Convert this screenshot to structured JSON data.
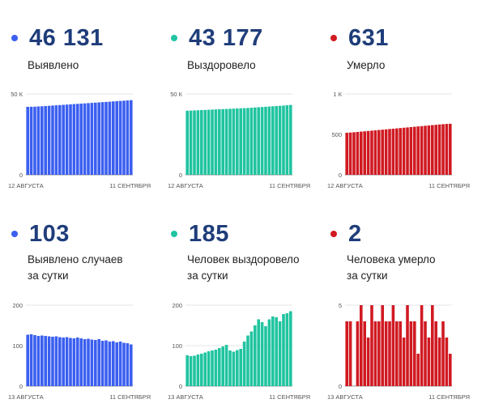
{
  "colors": {
    "blue": "#3b5ff0",
    "green": "#20c4a0",
    "red": "#d01a22",
    "number": "#1f3d7a"
  },
  "panels": [
    {
      "value": "46 131",
      "label_line1": "Выявлено",
      "label_line2": "",
      "color": "#3b5ff0",
      "chart_data": {
        "type": "bar",
        "ylim": [
          0,
          50000
        ],
        "yticks": [
          0,
          50000
        ],
        "ytick_labels": [
          "0",
          "50 К"
        ],
        "x_start_label": "12 АВГУСТА",
        "x_end_label": "11 СЕНТЯБРЯ",
        "values": [
          42000,
          42050,
          42100,
          42250,
          42350,
          42500,
          42650,
          42800,
          42950,
          43100,
          43250,
          43400,
          43550,
          43700,
          43850,
          44000,
          44150,
          44300,
          44450,
          44600,
          44750,
          44900,
          45050,
          45200,
          45350,
          45500,
          45650,
          45800,
          45950,
          46131
        ]
      }
    },
    {
      "value": "43 177",
      "label_line1": "Выздоровело",
      "label_line2": "",
      "color": "#20c4a0",
      "chart_data": {
        "type": "bar",
        "ylim": [
          0,
          50000
        ],
        "yticks": [
          0,
          50000
        ],
        "ytick_labels": [
          "0",
          "50 К"
        ],
        "x_start_label": "12 АВГУСТА",
        "x_end_label": "11 СЕНТЯБРЯ",
        "values": [
          39600,
          39700,
          39800,
          39900,
          40000,
          40100,
          40200,
          40300,
          40400,
          40500,
          40600,
          40700,
          40800,
          40900,
          41000,
          41100,
          41200,
          41300,
          41450,
          41600,
          41750,
          41900,
          42050,
          42200,
          42350,
          42500,
          42650,
          42800,
          42990,
          43177
        ]
      }
    },
    {
      "value": "631",
      "label_line1": "Умерло",
      "label_line2": "",
      "color": "#d01a22",
      "chart_data": {
        "type": "bar",
        "ylim": [
          0,
          1000
        ],
        "yticks": [
          0,
          500,
          1000
        ],
        "ytick_labels": [
          "0",
          "500",
          "1 К"
        ],
        "x_start_label": "12 АВГУСТА",
        "x_end_label": "11 СЕНТЯБРЯ",
        "values": [
          520,
          523,
          526,
          530,
          534,
          538,
          542,
          546,
          550,
          554,
          558,
          562,
          566,
          570,
          574,
          578,
          582,
          586,
          590,
          594,
          598,
          602,
          606,
          610,
          614,
          618,
          622,
          626,
          629,
          631
        ]
      }
    },
    {
      "value": "103",
      "label_line1": "Выявлено случаев",
      "label_line2": "за сутки",
      "color": "#3b5ff0",
      "chart_data": {
        "type": "bar",
        "ylim": [
          0,
          200
        ],
        "yticks": [
          0,
          100,
          200
        ],
        "ytick_labels": [
          "0",
          "100",
          "200"
        ],
        "x_start_label": "13 АВГУСТА",
        "x_end_label": "11 СЕНТЯБРЯ",
        "values": [
          127,
          128,
          126,
          124,
          125,
          124,
          123,
          122,
          123,
          121,
          120,
          121,
          119,
          118,
          120,
          118,
          116,
          117,
          115,
          114,
          116,
          112,
          113,
          110,
          111,
          108,
          110,
          107,
          106,
          103
        ]
      }
    },
    {
      "value": "185",
      "label_line1": "Человек выздоровело",
      "label_line2": "за сутки",
      "color": "#20c4a0",
      "chart_data": {
        "type": "bar",
        "ylim": [
          0,
          200
        ],
        "yticks": [
          0,
          100,
          200
        ],
        "ytick_labels": [
          "0",
          "100",
          "200"
        ],
        "x_start_label": "13 АВГУСТА",
        "x_end_label": "11 СЕНТЯБРЯ",
        "values": [
          76,
          74,
          75,
          78,
          80,
          83,
          86,
          88,
          90,
          94,
          98,
          102,
          88,
          85,
          89,
          92,
          110,
          125,
          135,
          150,
          165,
          158,
          148,
          165,
          172,
          170,
          160,
          178,
          180,
          185
        ]
      }
    },
    {
      "value": "2",
      "label_line1": "Человека умерло",
      "label_line2": "за сутки",
      "color": "#d01a22",
      "chart_data": {
        "type": "bar",
        "ylim": [
          0,
          5
        ],
        "yticks": [
          0,
          5
        ],
        "ytick_labels": [
          "0",
          "5"
        ],
        "x_start_label": "13 АВГУСТА",
        "x_end_label": "11 СЕНТЯБРЯ",
        "values": [
          4,
          4,
          0,
          4,
          5,
          4,
          3,
          5,
          4,
          4,
          5,
          4,
          4,
          5,
          4,
          4,
          3,
          5,
          4,
          4,
          2,
          5,
          4,
          3,
          5,
          4,
          3,
          4,
          3,
          2
        ]
      }
    }
  ]
}
